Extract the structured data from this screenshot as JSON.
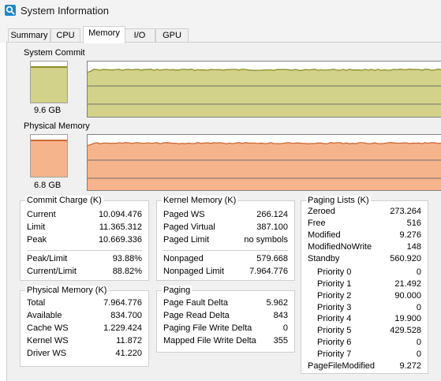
{
  "window": {
    "title": "System Information"
  },
  "tabs": [
    {
      "label": "Summary"
    },
    {
      "label": "CPU"
    },
    {
      "label": "Memory",
      "selected": true
    },
    {
      "label": "I/O"
    },
    {
      "label": "GPU"
    }
  ],
  "colors": {
    "commit": "#d2d28a",
    "commit_line": "#8c8c28",
    "physical": "#f6b48c",
    "physical_line": "#cc6633"
  },
  "graphs": {
    "commit": {
      "label": "System Commit",
      "value_text": "9.6 GB",
      "fill_fraction": 0.85
    },
    "physical": {
      "label": "Physical Memory",
      "value_text": "6.8 GB",
      "fill_fraction": 0.85
    }
  },
  "commit_charge": {
    "title": "Commit Charge (K)",
    "rows": [
      {
        "label": "Current",
        "value": "10.094.476"
      },
      {
        "label": "Limit",
        "value": "11.365.312"
      },
      {
        "label": "Peak",
        "value": "10.669.336"
      }
    ],
    "ratios": [
      {
        "label": "Peak/Limit",
        "value": "93.88%"
      },
      {
        "label": "Current/Limit",
        "value": "88.82%"
      }
    ]
  },
  "kernel_memory": {
    "title": "Kernel Memory (K)",
    "rows": [
      {
        "label": "Paged WS",
        "value": "266.124"
      },
      {
        "label": "Paged Virtual",
        "value": "387.100"
      },
      {
        "label": "Paged Limit",
        "value": "no symbols"
      }
    ],
    "rows2": [
      {
        "label": "Nonpaged",
        "value": "579.668"
      },
      {
        "label": "Nonpaged Limit",
        "value": "7.964.776"
      }
    ]
  },
  "paging_lists": {
    "title": "Paging Lists (K)",
    "rows": [
      {
        "label": "Zeroed",
        "value": "273.264"
      },
      {
        "label": "Free",
        "value": "516"
      },
      {
        "label": "Modified",
        "value": "9.276"
      },
      {
        "label": "ModifiedNoWrite",
        "value": "148"
      },
      {
        "label": "Standby",
        "value": "560.920"
      }
    ],
    "priorities": [
      {
        "label": "Priority 0",
        "value": "0"
      },
      {
        "label": "Priority 1",
        "value": "21.492"
      },
      {
        "label": "Priority 2",
        "value": "90.000"
      },
      {
        "label": "Priority 3",
        "value": "0"
      },
      {
        "label": "Priority 4",
        "value": "19.900"
      },
      {
        "label": "Priority 5",
        "value": "429.528"
      },
      {
        "label": "Priority 6",
        "value": "0"
      },
      {
        "label": "Priority 7",
        "value": "0"
      }
    ],
    "footer": {
      "label": "PageFileModified",
      "value": "9.272"
    }
  },
  "physical_memory": {
    "title": "Physical Memory (K)",
    "rows": [
      {
        "label": "Total",
        "value": "7.964.776"
      },
      {
        "label": "Available",
        "value": "834.700"
      },
      {
        "label": "Cache WS",
        "value": "1.229.424"
      },
      {
        "label": "Kernel WS",
        "value": "11.872"
      },
      {
        "label": "Driver WS",
        "value": "41.220"
      }
    ]
  },
  "paging": {
    "title": "Paging",
    "rows": [
      {
        "label": "Page Fault Delta",
        "value": "5.962"
      },
      {
        "label": "Page Read Delta",
        "value": "843"
      },
      {
        "label": "Paging File Write Delta",
        "value": "0"
      },
      {
        "label": "Mapped File Write Delta",
        "value": "355"
      }
    ]
  }
}
